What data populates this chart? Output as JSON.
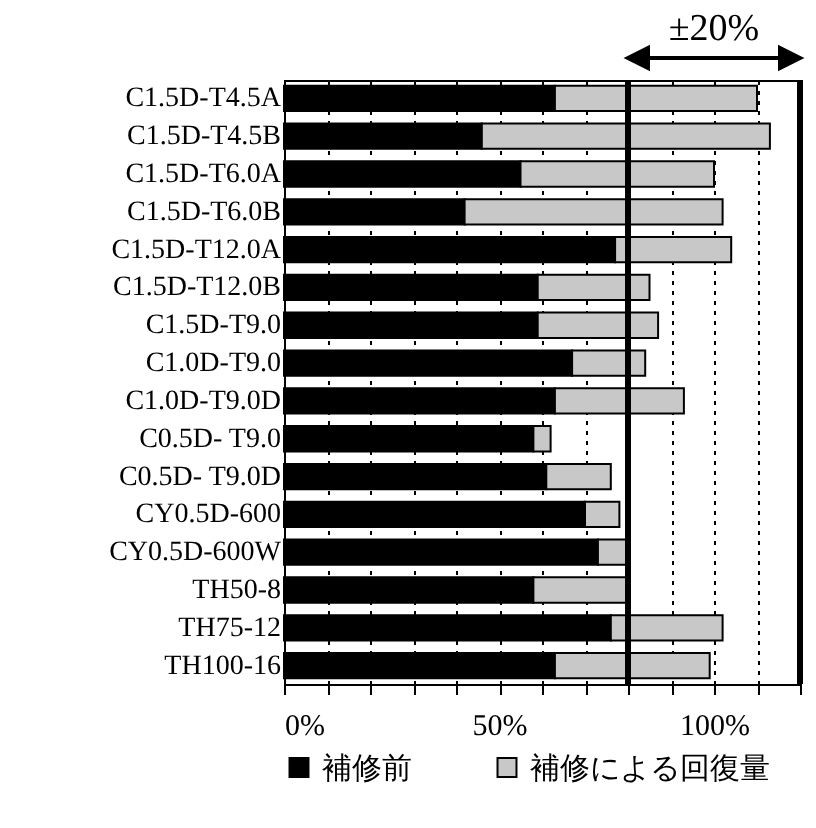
{
  "chart_data": {
    "type": "bar",
    "orientation": "horizontal",
    "stacked": true,
    "categories": [
      "C1.5D-T4.5A",
      "C1.5D-T4.5B",
      "C1.5D-T6.0A",
      "C1.5D-T6.0B",
      "C1.5D-T12.0A",
      "C1.5D-T12.0B",
      "C1.5D-T9.0",
      "C1.0D-T9.0",
      "C1.0D-T9.0D",
      "C0.5D- T9.0",
      "C0.5D- T9.0D",
      "CY0.5D-600",
      "CY0.5D-600W",
      "TH50-8",
      "TH75-12",
      "TH100-16"
    ],
    "series": [
      {
        "name": "補修前",
        "color": "#000000",
        "values": [
          63,
          46,
          55,
          42,
          77,
          59,
          59,
          67,
          63,
          58,
          61,
          70,
          73,
          58,
          76,
          63
        ]
      },
      {
        "name": "補修による回復量",
        "color": "#c8c8c8",
        "values": [
          47,
          67,
          45,
          60,
          27,
          26,
          28,
          17,
          30,
          4,
          15,
          8,
          7,
          22,
          26,
          36
        ]
      }
    ],
    "xlim": [
      0,
      120
    ],
    "xticks": [
      {
        "value": 0,
        "label": "0%"
      },
      {
        "value": 10,
        "label": null
      },
      {
        "value": 20,
        "label": null
      },
      {
        "value": 30,
        "label": null
      },
      {
        "value": 40,
        "label": null
      },
      {
        "value": 50,
        "label": "50%"
      },
      {
        "value": 60,
        "label": null
      },
      {
        "value": 70,
        "label": null
      },
      {
        "value": 80,
        "label": null
      },
      {
        "value": 90,
        "label": null
      },
      {
        "value": 100,
        "label": "100%"
      },
      {
        "value": 110,
        "label": null
      },
      {
        "value": 120,
        "label": null
      }
    ],
    "ref_lines": [
      {
        "axis": "x",
        "value": 80
      },
      {
        "axis": "x",
        "value": 120
      }
    ],
    "annotations": [
      "±20%"
    ],
    "grid": "x",
    "legend": "bottom"
  }
}
